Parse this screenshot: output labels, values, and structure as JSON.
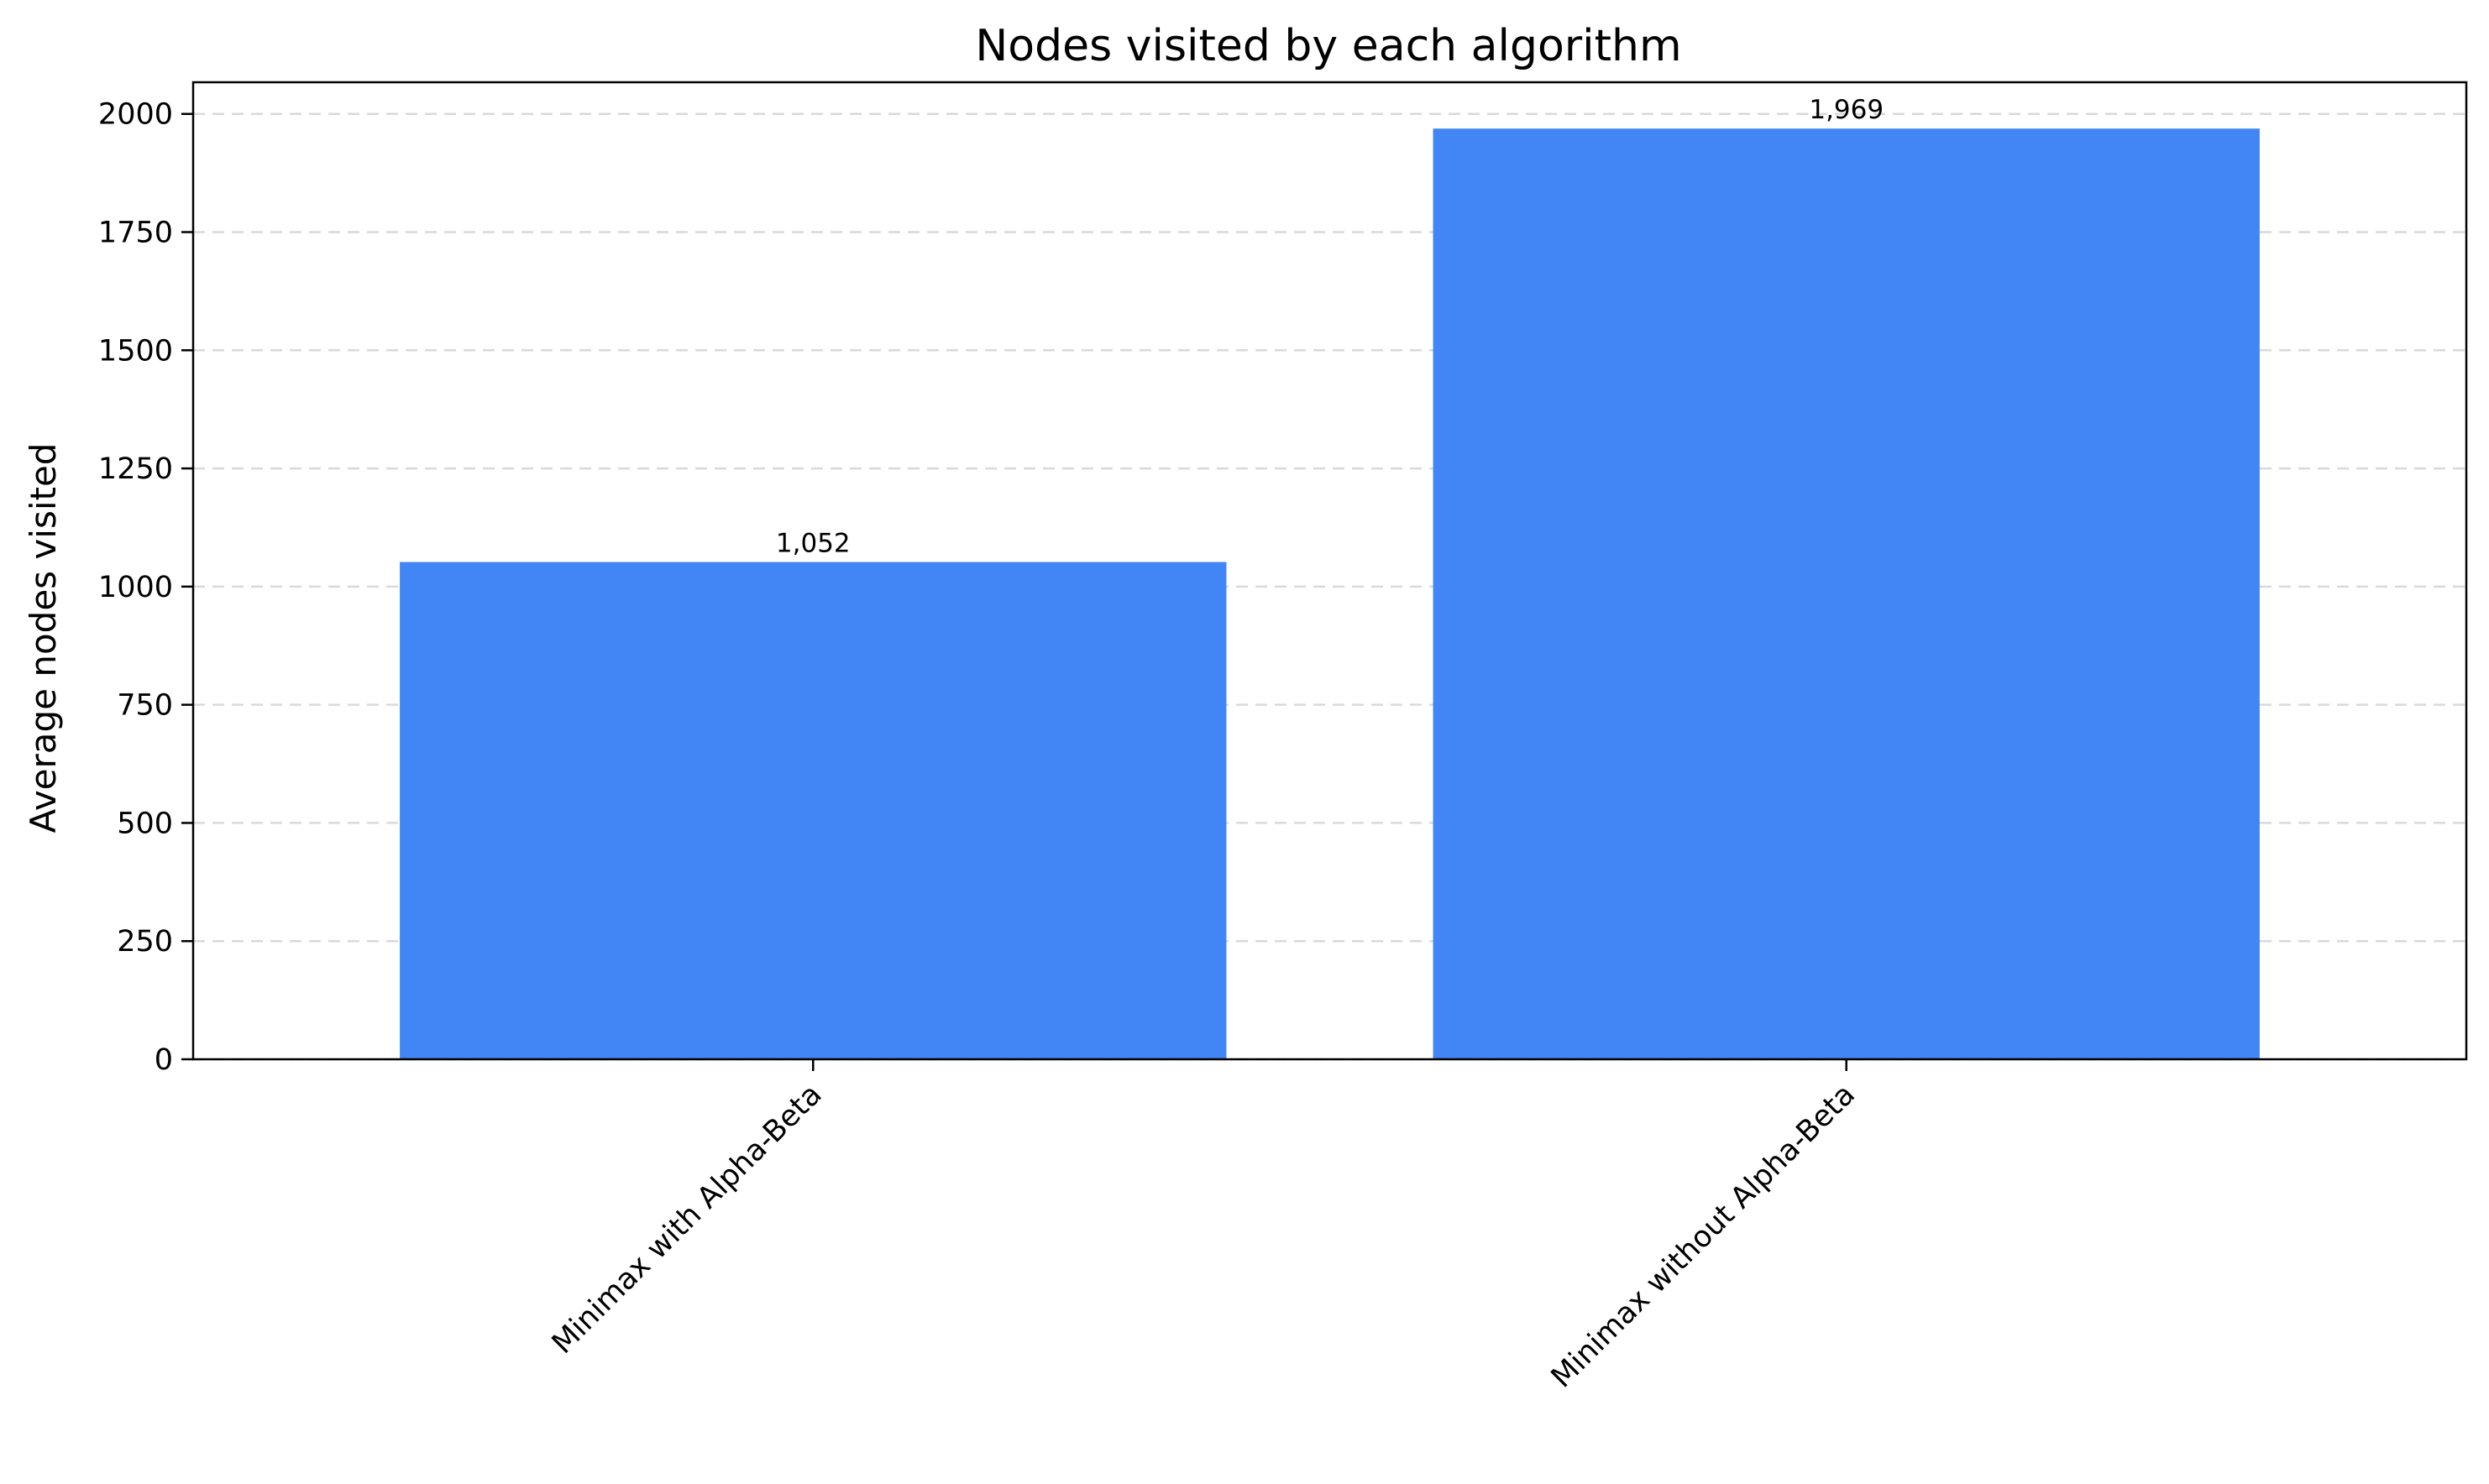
{
  "chart_data": {
    "type": "bar",
    "title": "Nodes visited by each algorithm",
    "xlabel": "",
    "ylabel": "Average nodes visited",
    "categories": [
      "Minimax with Alpha-Beta",
      "Minimax without Alpha-Beta"
    ],
    "values": [
      1052,
      1969
    ],
    "data_labels": [
      "1,052",
      "1,969"
    ],
    "yticks": [
      0,
      250,
      500,
      750,
      1000,
      1250,
      1500,
      1750,
      2000
    ],
    "ylim": [
      0,
      2067
    ],
    "grid": "y-dashed",
    "bar_color": "#4285f4"
  }
}
